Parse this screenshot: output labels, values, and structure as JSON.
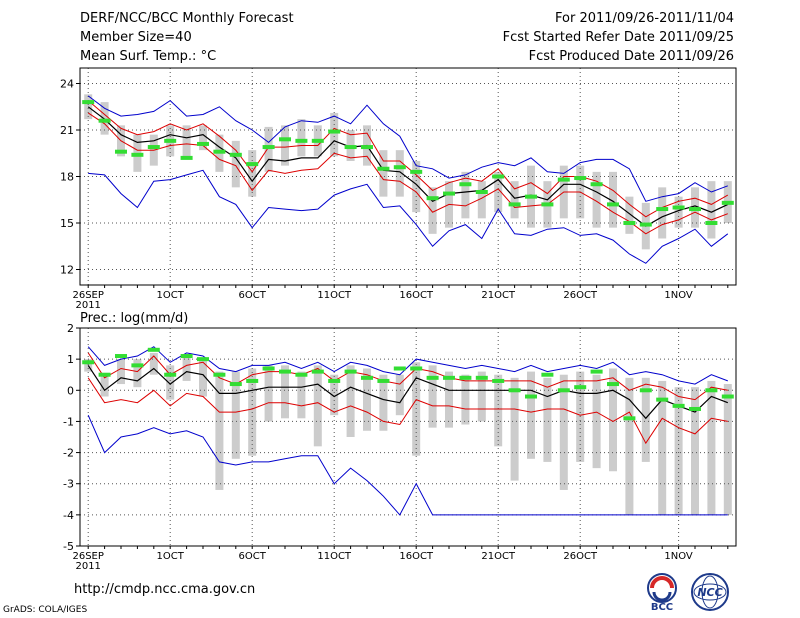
{
  "header": {
    "title": "DERF/NCC/BCC Monthly Forecast",
    "member_size": "Member Size=40",
    "variable": "Mean Surf. Temp.: °C",
    "period": "For 2011/09/26-2011/11/04",
    "started": "Fcst Started Refer Date 2011/09/25",
    "produced": "Fcst Produced Date 2011/09/26"
  },
  "footer": {
    "url": "http://cmdp.ncc.cma.gov.cn",
    "credit": "GrADS: COLA/IGES",
    "logo_bcc": "BCC",
    "logo_ncc": "NCC"
  },
  "colors": {
    "envelope": "#0000cc",
    "spread": "#dd0000",
    "mean": "#000000",
    "median": "#33dd33",
    "box": "#cccccc"
  },
  "chart_data": [
    {
      "type": "line",
      "title": "Mean Surf. Temp.: °C",
      "ylim": [
        11,
        25
      ],
      "yticks": [
        12,
        15,
        18,
        21,
        24
      ],
      "xlabels": [
        "26SEP",
        "1OCT",
        "6OCT",
        "11OCT",
        "16OCT",
        "21OCT",
        "26OCT",
        "1NOV"
      ],
      "xlabel_days": [
        0,
        5,
        10,
        15,
        20,
        25,
        30,
        36
      ],
      "xlabel_year": "2011",
      "days": 40,
      "series": [
        {
          "name": "max",
          "values": [
            23.2,
            22.4,
            21.9,
            22.0,
            22.2,
            22.9,
            21.9,
            22.0,
            22.5,
            21.6,
            21.0,
            20.2,
            21.2,
            21.6,
            21.5,
            21.9,
            21.4,
            22.6,
            21.4,
            20.6,
            18.7,
            18.5,
            17.9,
            18.1,
            18.6,
            18.9,
            18.7,
            19.2,
            18.3,
            18.2,
            18.9,
            19.1,
            19.1,
            18.5,
            16.4,
            16.7,
            16.9,
            17.6,
            17.0,
            17.4
          ]
        },
        {
          "name": "min",
          "values": [
            18.2,
            18.1,
            16.9,
            16.0,
            17.7,
            17.8,
            18.1,
            18.4,
            16.7,
            16.2,
            14.7,
            16.0,
            15.9,
            15.8,
            15.9,
            16.8,
            17.2,
            17.5,
            16.0,
            16.1,
            14.9,
            13.5,
            14.5,
            14.9,
            14.0,
            15.9,
            14.3,
            14.2,
            14.6,
            14.7,
            14.2,
            14.3,
            13.9,
            13.0,
            12.4,
            13.5,
            14.0,
            14.6,
            13.5,
            14.3
          ]
        },
        {
          "name": "upper",
          "values": [
            22.9,
            22.0,
            21.1,
            20.7,
            20.9,
            21.4,
            21.0,
            21.4,
            20.6,
            19.7,
            18.3,
            19.9,
            19.9,
            20.0,
            20.0,
            21.1,
            20.7,
            20.8,
            19.0,
            19.0,
            18.1,
            17.1,
            17.6,
            17.9,
            17.7,
            18.5,
            17.2,
            17.6,
            16.9,
            18.0,
            18.0,
            17.7,
            17.1,
            16.2,
            15.4,
            16.0,
            16.4,
            16.6,
            16.2,
            16.8
          ]
        },
        {
          "name": "lower",
          "values": [
            22.1,
            21.4,
            20.3,
            19.7,
            19.7,
            20.0,
            20.1,
            20.0,
            19.1,
            18.7,
            17.1,
            18.4,
            18.2,
            18.4,
            18.5,
            19.5,
            19.2,
            19.3,
            17.8,
            17.7,
            17.0,
            15.7,
            16.2,
            16.1,
            16.6,
            17.2,
            16.0,
            16.1,
            16.2,
            17.0,
            17.0,
            16.4,
            15.7,
            15.1,
            14.3,
            14.9,
            15.2,
            15.7,
            15.2,
            15.6
          ]
        },
        {
          "name": "mean",
          "values": [
            22.5,
            21.7,
            20.7,
            20.2,
            20.3,
            20.7,
            20.5,
            20.7,
            19.9,
            19.2,
            17.7,
            19.1,
            19.0,
            19.2,
            19.2,
            20.3,
            19.9,
            20.0,
            18.4,
            18.3,
            17.5,
            16.4,
            16.9,
            17.0,
            17.1,
            17.8,
            16.6,
            16.8,
            16.5,
            17.5,
            17.5,
            17.0,
            16.4,
            15.6,
            14.8,
            15.4,
            15.8,
            16.1,
            15.7,
            16.2
          ]
        },
        {
          "name": "median",
          "values": [
            22.8,
            21.6,
            19.6,
            19.4,
            19.9,
            20.3,
            19.2,
            20.1,
            19.6,
            19.4,
            18.8,
            19.9,
            20.4,
            20.3,
            20.3,
            20.9,
            19.9,
            19.9,
            18.5,
            18.6,
            18.3,
            16.6,
            16.9,
            17.5,
            17.0,
            18.0,
            16.2,
            16.7,
            16.2,
            17.8,
            17.9,
            17.5,
            16.2,
            15.0,
            14.9,
            15.9,
            16.0,
            15.9,
            15.0,
            16.3
          ]
        },
        {
          "name": "box_high",
          "values": [
            23.3,
            22.8,
            21.3,
            20.7,
            20.7,
            21.3,
            21.3,
            21.3,
            20.7,
            20.3,
            19.7,
            21.2,
            21.3,
            21.7,
            21.3,
            22.1,
            21.0,
            21.3,
            19.7,
            19.7,
            19.0,
            17.3,
            17.7,
            18.3,
            17.7,
            18.3,
            17.7,
            18.7,
            17.7,
            18.7,
            18.7,
            18.3,
            18.3,
            16.7,
            16.3,
            17.3,
            16.7,
            17.3,
            17.7,
            17.7
          ]
        },
        {
          "name": "box_low",
          "values": [
            21.7,
            20.7,
            19.3,
            18.3,
            18.7,
            19.3,
            19.3,
            19.7,
            18.3,
            17.3,
            16.7,
            18.3,
            18.7,
            19.3,
            19.3,
            19.3,
            19.0,
            18.7,
            16.7,
            16.7,
            15.7,
            14.3,
            14.7,
            15.3,
            15.3,
            15.7,
            15.3,
            14.7,
            14.7,
            15.3,
            15.3,
            14.7,
            14.7,
            14.3,
            13.3,
            14.0,
            14.7,
            14.7,
            14.0,
            15.0
          ]
        }
      ]
    },
    {
      "type": "line",
      "title": "Prec.: log(mm/d)",
      "ylim": [
        -5,
        2
      ],
      "yticks": [
        -5,
        -4,
        -3,
        -2,
        -1,
        0,
        1,
        2
      ],
      "xlabels": [
        "26SEP",
        "1OCT",
        "6OCT",
        "11OCT",
        "16OCT",
        "21OCT",
        "26OCT",
        "1NOV"
      ],
      "xlabel_days": [
        0,
        5,
        10,
        15,
        20,
        25,
        30,
        36
      ],
      "xlabel_year": "2011",
      "days": 40,
      "series": [
        {
          "name": "max",
          "values": [
            1.4,
            0.8,
            1.0,
            1.1,
            1.4,
            0.9,
            1.2,
            1.1,
            0.7,
            0.6,
            0.8,
            0.8,
            0.9,
            0.7,
            0.9,
            0.6,
            0.9,
            0.8,
            0.6,
            0.5,
            1.0,
            0.9,
            0.8,
            0.7,
            0.8,
            0.7,
            0.6,
            0.8,
            0.6,
            0.7,
            0.8,
            0.7,
            0.9,
            0.5,
            0.6,
            0.5,
            0.3,
            0.2,
            0.5,
            0.3
          ]
        },
        {
          "name": "min",
          "values": [
            -0.8,
            -2.0,
            -1.5,
            -1.4,
            -1.2,
            -1.4,
            -1.3,
            -1.5,
            -2.3,
            -2.4,
            -2.3,
            -2.3,
            -2.2,
            -2.1,
            -2.1,
            -3.0,
            -2.5,
            -2.9,
            -3.4,
            -4.0,
            -3.0,
            -4.0,
            -4.0,
            -4.0,
            -4.0,
            -4.0,
            -4.0,
            -4.0,
            -4.0,
            -4.0,
            -4.0,
            -4.0,
            -4.0,
            -4.0,
            -4.0,
            -4.0,
            -4.0,
            -4.0,
            -4.0,
            -4.0
          ]
        },
        {
          "name": "upper",
          "values": [
            1.2,
            0.4,
            0.7,
            0.6,
            1.1,
            0.5,
            0.8,
            0.9,
            0.4,
            0.2,
            0.5,
            0.6,
            0.6,
            0.5,
            0.7,
            0.3,
            0.6,
            0.5,
            0.3,
            0.2,
            0.7,
            0.6,
            0.4,
            0.3,
            0.3,
            0.3,
            0.3,
            0.3,
            0.1,
            0.3,
            0.3,
            0.3,
            0.4,
            0.0,
            0.2,
            0.1,
            -0.2,
            -0.3,
            0.1,
            0.0
          ]
        },
        {
          "name": "lower",
          "values": [
            0.4,
            -0.4,
            -0.3,
            -0.4,
            0.0,
            -0.5,
            -0.1,
            -0.2,
            -0.7,
            -0.7,
            -0.6,
            -0.4,
            -0.4,
            -0.5,
            -0.4,
            -0.7,
            -0.5,
            -0.7,
            -1.0,
            -1.1,
            -0.3,
            -0.5,
            -0.5,
            -0.6,
            -0.6,
            -0.6,
            -0.6,
            -0.7,
            -0.6,
            -0.6,
            -0.8,
            -0.7,
            -1.0,
            -0.7,
            -1.7,
            -0.9,
            -1.2,
            -1.4,
            -0.9,
            -1.0
          ]
        },
        {
          "name": "mean",
          "values": [
            0.8,
            0.0,
            0.4,
            0.3,
            0.7,
            0.2,
            0.6,
            0.5,
            -0.1,
            -0.1,
            0.0,
            0.1,
            0.1,
            0.1,
            0.2,
            -0.2,
            0.1,
            -0.1,
            -0.3,
            -0.4,
            0.4,
            0.2,
            0.0,
            0.0,
            0.0,
            0.0,
            0.0,
            0.0,
            -0.2,
            0.0,
            -0.1,
            -0.1,
            0.0,
            -0.3,
            -0.9,
            -0.3,
            -0.5,
            -0.7,
            -0.2,
            -0.4
          ]
        },
        {
          "name": "median",
          "values": [
            0.9,
            0.5,
            1.1,
            0.8,
            1.3,
            0.5,
            1.1,
            1.0,
            0.5,
            0.2,
            0.3,
            0.7,
            0.6,
            0.5,
            0.6,
            0.3,
            0.6,
            0.4,
            0.3,
            0.7,
            0.7,
            0.4,
            0.4,
            0.4,
            0.4,
            0.3,
            0.0,
            -0.2,
            0.5,
            0.0,
            0.1,
            0.6,
            0.2,
            -0.9,
            0.0,
            -0.3,
            -0.5,
            -0.6,
            0.0,
            -0.2
          ]
        },
        {
          "name": "box_high",
          "values": [
            1.0,
            0.5,
            1.0,
            1.0,
            1.2,
            0.8,
            1.1,
            1.0,
            0.6,
            0.6,
            0.7,
            0.8,
            0.8,
            0.6,
            0.8,
            0.5,
            0.8,
            0.7,
            0.5,
            0.5,
            0.9,
            0.8,
            0.6,
            0.5,
            0.6,
            0.5,
            0.4,
            0.6,
            0.4,
            0.5,
            0.6,
            0.5,
            0.7,
            0.4,
            0.4,
            0.3,
            0.1,
            0.1,
            0.3,
            0.2
          ]
        },
        {
          "name": "box_low",
          "values": [
            0.6,
            -0.2,
            0.2,
            0.1,
            0.5,
            -0.3,
            0.3,
            -0.2,
            -3.2,
            -2.2,
            -2.1,
            -1.0,
            -0.9,
            -0.9,
            -1.8,
            -0.8,
            -1.5,
            -1.3,
            -1.3,
            -0.8,
            -2.1,
            -1.2,
            -1.2,
            -1.1,
            -1.0,
            -1.8,
            -2.9,
            -2.2,
            -2.3,
            -3.2,
            -2.3,
            -2.5,
            -2.6,
            -4.0,
            -2.3,
            -4.0,
            -4.0,
            -4.0,
            -4.0,
            -4.0
          ]
        }
      ]
    }
  ]
}
